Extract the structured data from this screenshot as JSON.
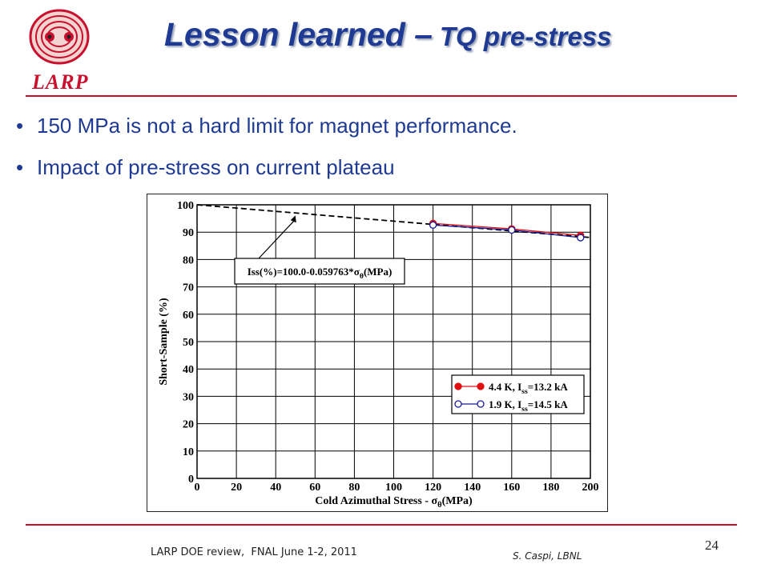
{
  "slide": {
    "logo_text": "LARP",
    "title_main": "Lesson learned –",
    "title_sub": "TQ pre-stress",
    "bullets": [
      "150 MPa is not a hard limit for magnet performance.",
      "Impact of pre-stress on current plateau"
    ],
    "bullet_glyph": "•",
    "footer_left": "LARP DOE review,  FNAL June 1-2, 2011",
    "footer_right": "S. Caspi, LBNL",
    "page_number": "24",
    "colors": {
      "title": "#1f3a93",
      "rule": "#c8102e",
      "logo": "#c8102e"
    }
  },
  "chart_data": {
    "type": "line",
    "xlabel": "Cold Azimuthal Stress - σθ(MPa)",
    "ylabel": "Short-Sample (%)",
    "xlim": [
      0,
      200
    ],
    "ylim": [
      0,
      100
    ],
    "xticks": [
      0,
      20,
      40,
      60,
      80,
      100,
      120,
      140,
      160,
      180,
      200
    ],
    "yticks": [
      0,
      10,
      20,
      30,
      40,
      50,
      60,
      70,
      80,
      90,
      100
    ],
    "grid": true,
    "legend_position": "bottom-right",
    "annotation": "Iss(%)=100.0-0.059763*σθ(MPa)",
    "fit_line": {
      "intercept": 100.0,
      "slope": -0.059763,
      "x_range": [
        0,
        200
      ],
      "style": "dashed",
      "color": "#000000"
    },
    "series": [
      {
        "name": "4.4 K, Iss=13.2 kA",
        "x": [
          120,
          160,
          195
        ],
        "y": [
          93.2,
          91.2,
          88.8
        ],
        "marker": "filled-circle",
        "color": "#e01010"
      },
      {
        "name": "1.9 K, Iss=14.5 kA",
        "x": [
          120,
          160,
          195
        ],
        "y": [
          92.6,
          90.8,
          88.0
        ],
        "marker": "open-circle",
        "color": "#1a1a9a"
      }
    ]
  }
}
